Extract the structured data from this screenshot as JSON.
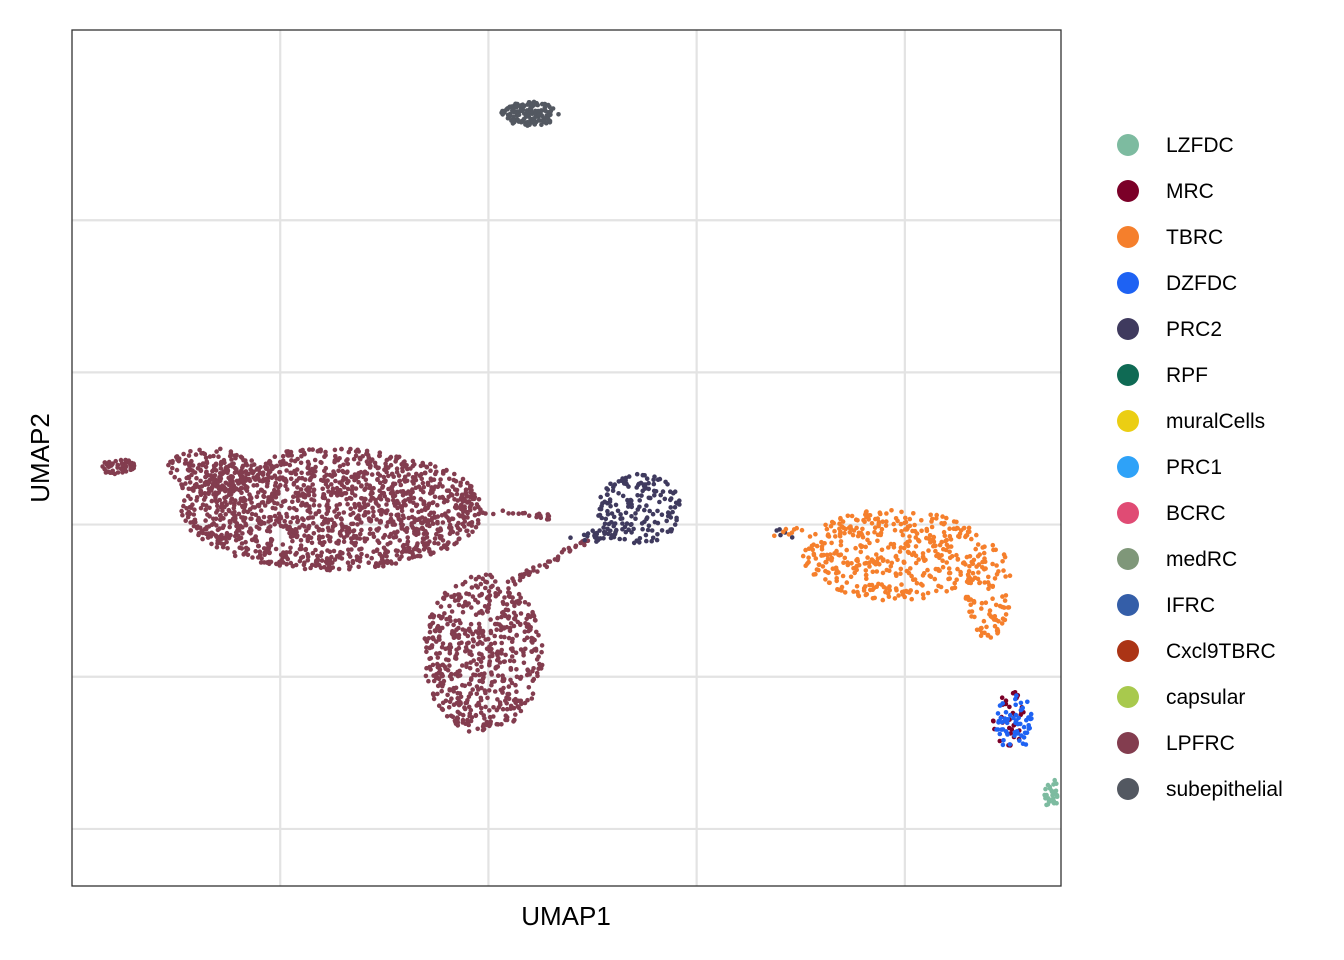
{
  "chart_data": {
    "type": "scatter",
    "title": "",
    "xlabel": "UMAP1",
    "ylabel": "UMAP2",
    "xlim": [
      -2,
      17
    ],
    "ylim": [
      -15.5,
      7
    ],
    "grid": true,
    "tick_labels_shown": false,
    "legend_position": "right",
    "legend": [
      {
        "name": "LZFDC",
        "color": "#7dbba0"
      },
      {
        "name": "MRC",
        "color": "#7b0028"
      },
      {
        "name": "TBRC",
        "color": "#f57f2c"
      },
      {
        "name": "DZFDC",
        "color": "#1e62f3"
      },
      {
        "name": "PRC2",
        "color": "#3f3a5e"
      },
      {
        "name": "RPF",
        "color": "#0f6a54"
      },
      {
        "name": "muralCells",
        "color": "#ebce13"
      },
      {
        "name": "PRC1",
        "color": "#2ea2f8"
      },
      {
        "name": "BCRC",
        "color": "#e04b74"
      },
      {
        "name": "medRC",
        "color": "#7f9779"
      },
      {
        "name": "IFRC",
        "color": "#345ea8"
      },
      {
        "name": "Cxcl9TBRC",
        "color": "#ab3415"
      },
      {
        "name": "capsular",
        "color": "#a8c94d"
      },
      {
        "name": "LPFRC",
        "color": "#833d4f"
      },
      {
        "name": "subepithelial",
        "color": "#535861"
      }
    ],
    "clusters": [
      {
        "name": "LPFRC",
        "shape": "ellipse",
        "center": [
          3.0,
          -5.6
        ],
        "spread": [
          2.9,
          1.6
        ],
        "n": 1500
      },
      {
        "name": "LPFRC",
        "shape": "ellipse",
        "center": [
          0.7,
          -4.6
        ],
        "spread": [
          0.9,
          0.6
        ],
        "n": 150
      },
      {
        "name": "LPFRC",
        "shape": "ellipse",
        "center": [
          -1.1,
          -4.5
        ],
        "spread": [
          0.35,
          0.22
        ],
        "n": 60
      },
      {
        "name": "LPFRC",
        "shape": "ellipse",
        "center": [
          5.9,
          -9.4
        ],
        "spread": [
          1.15,
          2.1
        ],
        "n": 600
      },
      {
        "name": "LPFRC",
        "shape": "line",
        "from": [
          6.5,
          -7.5
        ],
        "to": [
          7.9,
          -6.4
        ],
        "n": 40
      },
      {
        "name": "LPFRC",
        "shape": "line",
        "from": [
          5.5,
          -5.6
        ],
        "to": [
          7.2,
          -5.8
        ],
        "n": 25
      },
      {
        "name": "PRC2",
        "shape": "ellipse",
        "center": [
          8.9,
          -5.6
        ],
        "spread": [
          0.8,
          0.95
        ],
        "n": 170
      },
      {
        "name": "PRC2",
        "shape": "ellipse",
        "center": [
          8.0,
          -6.3
        ],
        "spread": [
          0.45,
          0.15
        ],
        "n": 25
      },
      {
        "name": "PRC2",
        "shape": "line",
        "from": [
          11.5,
          -6.1
        ],
        "to": [
          11.8,
          -6.3
        ],
        "n": 5
      },
      {
        "name": "subepithelial",
        "shape": "ellipse",
        "center": [
          6.8,
          4.8
        ],
        "spread": [
          0.55,
          0.32
        ],
        "n": 140
      },
      {
        "name": "TBRC",
        "shape": "ellipse",
        "center": [
          13.8,
          -6.8
        ],
        "spread": [
          1.8,
          1.2
        ],
        "n": 430
      },
      {
        "name": "TBRC",
        "shape": "ellipse",
        "center": [
          15.6,
          -7.7
        ],
        "spread": [
          0.45,
          1.3
        ],
        "n": 90
      },
      {
        "name": "TBRC",
        "shape": "line",
        "from": [
          11.3,
          -6.3
        ],
        "to": [
          12.0,
          -6.1
        ],
        "n": 8
      },
      {
        "name": "MRC",
        "shape": "ellipse",
        "center": [
          16.0,
          -11.1
        ],
        "spread": [
          0.32,
          0.75
        ],
        "n": 35
      },
      {
        "name": "DZFDC",
        "shape": "ellipse",
        "center": [
          16.1,
          -11.2
        ],
        "spread": [
          0.35,
          0.8
        ],
        "n": 60
      },
      {
        "name": "LZFDC",
        "shape": "ellipse",
        "center": [
          17.0,
          -13.1
        ],
        "spread": [
          0.38,
          0.45
        ],
        "n": 75
      }
    ]
  }
}
